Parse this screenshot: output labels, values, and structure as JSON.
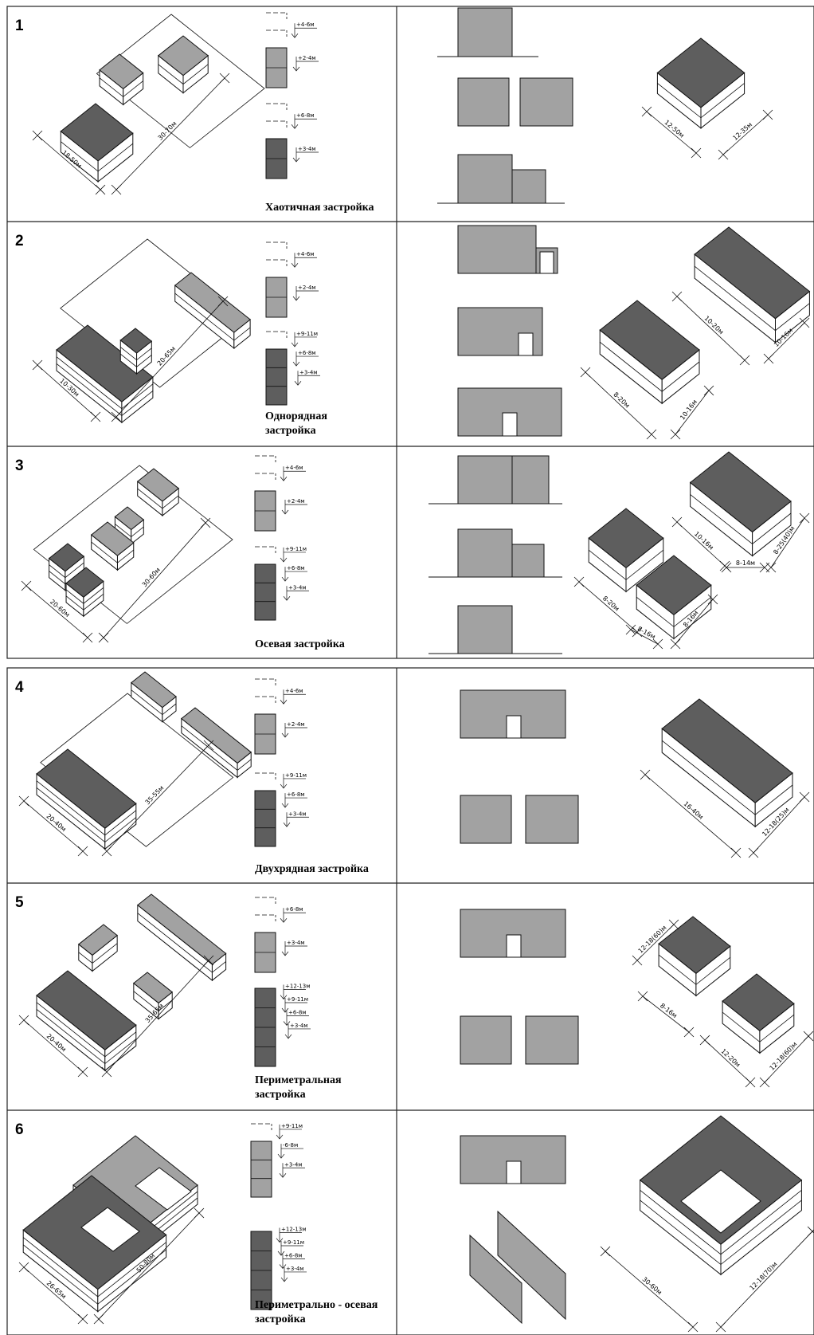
{
  "colors": {
    "roof_dark": "#5e5e5e",
    "roof_light": "#a2a2a2",
    "wall": "#ffffff",
    "line": "#111111",
    "bg": "#ffffff"
  },
  "panels": [
    {
      "number": "1",
      "caption_lines": [
        "Хаотичная застройка"
      ],
      "site_dims": [
        "18-50м",
        "30-70м"
      ],
      "levels_light": [
        "+4-6м",
        "+2-4м"
      ],
      "levels_dark": [
        "+6-8м",
        "+3-4м"
      ],
      "building_dims": [
        "12-50м",
        "12-35м"
      ]
    },
    {
      "number": "2",
      "caption_lines": [
        "Однорядная",
        "застройка"
      ],
      "site_dims": [
        "10-30м",
        "20-65м"
      ],
      "levels_light": [
        "+4-6м",
        "+2-4м"
      ],
      "levels_dark": [
        "+9-11м",
        "+6-8м",
        "+3-4м"
      ],
      "building_dims": [
        "10-20м",
        "10-16м",
        "8-20м",
        "10-16м"
      ]
    },
    {
      "number": "3",
      "caption_lines": [
        "Осевая застройка"
      ],
      "site_dims": [
        "20-60м",
        "30-60м"
      ],
      "levels_light": [
        "+4-6м",
        "+2-4м"
      ],
      "levels_dark": [
        "+9-11м",
        "+6-8м",
        "+3-4м"
      ],
      "building_dims": [
        "10-16м",
        "8-14м",
        "8-25(40)м",
        "8-20м",
        "8-16м",
        "8-16м"
      ]
    },
    {
      "number": "4",
      "caption_lines": [
        "Двухрядная застройка"
      ],
      "site_dims": [
        "20-40м",
        "35-55м"
      ],
      "levels_light": [
        "+4-6м",
        "+2-4м"
      ],
      "levels_dark": [
        "+9-11м",
        "+6-8м",
        "+3-4м"
      ],
      "building_dims": [
        "16-40м",
        "12-18(25)м"
      ]
    },
    {
      "number": "5",
      "caption_lines": [
        "Периметральная",
        "застройка"
      ],
      "site_dims": [
        "20-40м",
        "35-65м"
      ],
      "levels_light": [
        "+6-8м",
        "+3-4м"
      ],
      "levels_dark": [
        "+12-13м",
        "+9-11м",
        "+6-8м",
        "+3-4м"
      ],
      "building_dims": [
        "12-18(60)м",
        "8-16м",
        "12-20м",
        "12-18(60)м"
      ]
    },
    {
      "number": "6",
      "caption_lines": [
        "Периметрально - осевая",
        "застройка"
      ],
      "site_dims": [
        "26-65м",
        "50-80м"
      ],
      "levels_light": [
        "+9-11м",
        "-6-8м",
        "+3-4м"
      ],
      "levels_dark": [
        "+12-13м",
        "+9-11м",
        "+6-8м",
        "+3-4м"
      ],
      "building_dims": [
        "30-60м",
        "12-18(70)м"
      ]
    }
  ]
}
